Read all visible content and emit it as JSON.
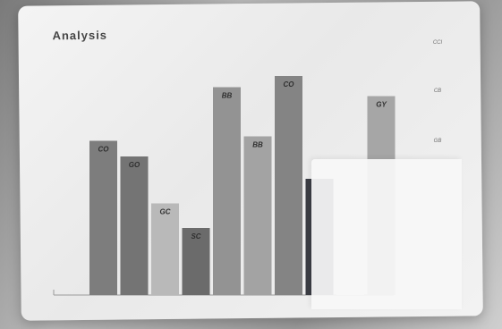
{
  "chart_data": {
    "type": "bar",
    "title": "Analysis",
    "categories": [
      "",
      "",
      "",
      "",
      "",
      "",
      "",
      "",
      "",
      ""
    ],
    "values": [
      69,
      62,
      41,
      30,
      93,
      71,
      98,
      52,
      42,
      89
    ],
    "bar_labels": [
      "CO",
      "GO",
      "GC",
      "SC",
      "BB",
      "BB",
      "CO",
      "",
      "",
      "GY"
    ],
    "colors": [
      "#7d7d7d",
      "#747474",
      "#b9b9b9",
      "#6b6b6b",
      "#939393",
      "#a3a3a3",
      "#848484",
      "#3b3d44",
      "#efefef",
      "#a6a6a6"
    ],
    "right_labels": [
      "CCI",
      "CB",
      "GB"
    ],
    "ylim": [
      0,
      100
    ],
    "grid": false
  }
}
